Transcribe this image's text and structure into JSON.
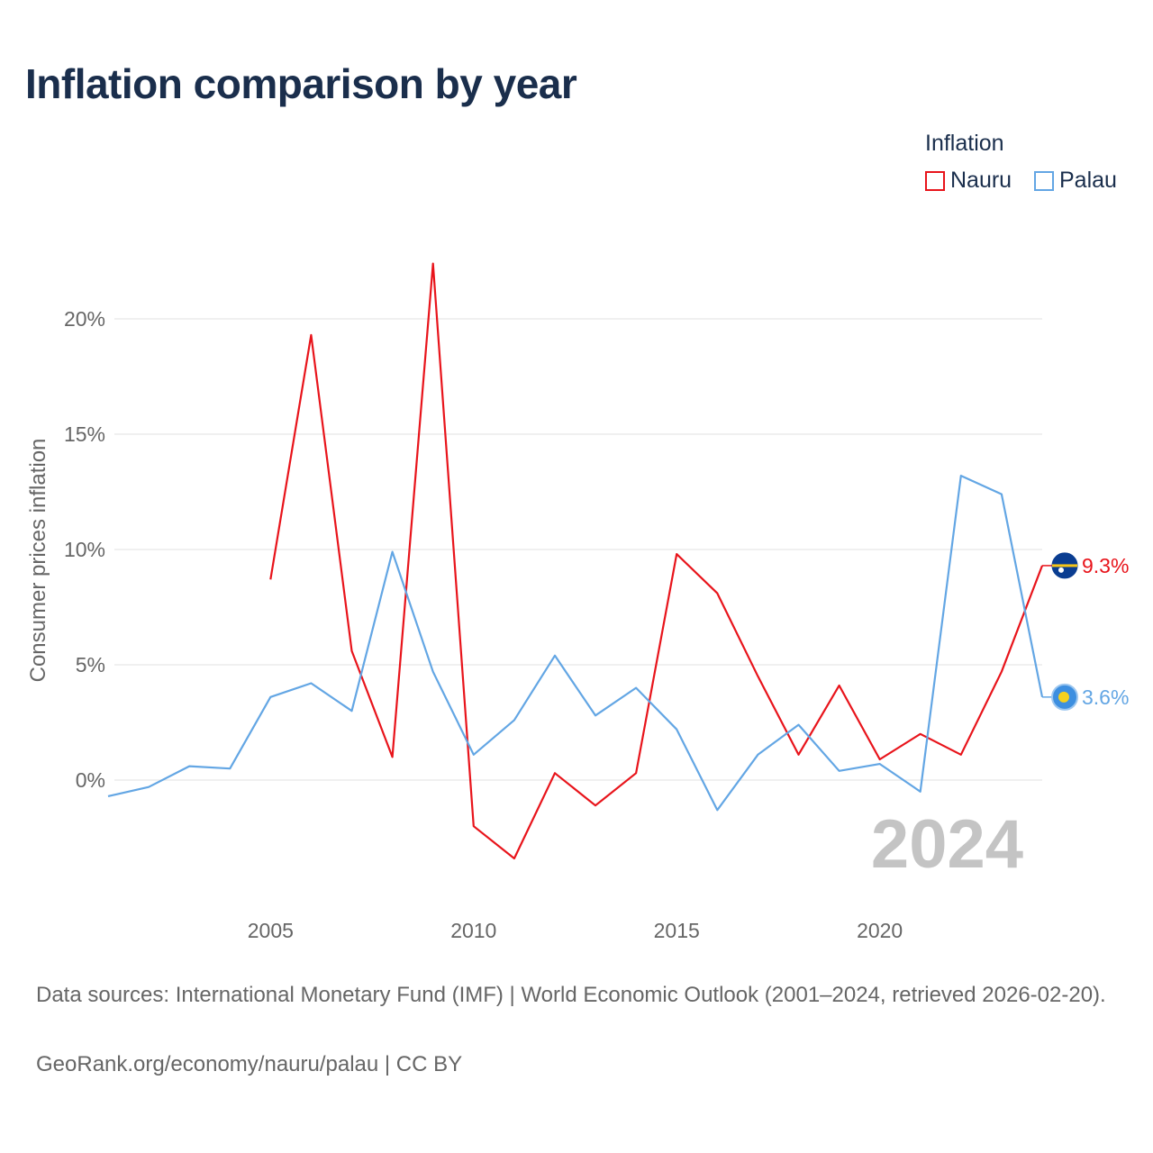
{
  "title": "Inflation comparison by year",
  "legend": {
    "title": "Inflation",
    "items": [
      {
        "name": "Nauru",
        "color": "#e8141b"
      },
      {
        "name": "Palau",
        "color": "#63a6e4"
      }
    ]
  },
  "footer": {
    "sources": "Data sources: International Monetary Fund (IMF) | World Economic Outlook (2001–2024, retrieved 2026-02-20).",
    "credit": "GeoRank.org/economy/nauru/palau | CC BY"
  },
  "chart_data": {
    "type": "line",
    "title": "Inflation comparison by year",
    "xlabel": "",
    "ylabel": "Consumer prices inflation",
    "xlim": [
      2001,
      2024
    ],
    "ylim": [
      -5,
      24
    ],
    "x_ticks": [
      2005,
      2010,
      2015,
      2020
    ],
    "x_tick_labels": [
      "2005",
      "2010",
      "2015",
      "2020"
    ],
    "y_ticks": [
      0,
      5,
      10,
      15,
      20
    ],
    "y_tick_labels": [
      "0%",
      "5%",
      "10%",
      "15%",
      "20%"
    ],
    "grid": true,
    "legend_position": "top-right",
    "year_watermark": "2024",
    "series": [
      {
        "name": "Nauru",
        "color": "#e8141b",
        "end_label": "9.3%",
        "x": [
          2005,
          2006,
          2007,
          2008,
          2009,
          2010,
          2011,
          2012,
          2013,
          2014,
          2015,
          2016,
          2017,
          2018,
          2019,
          2020,
          2021,
          2022,
          2023,
          2024
        ],
        "values": [
          8.7,
          19.3,
          5.6,
          1.0,
          22.4,
          -2.0,
          -3.4,
          0.3,
          -1.1,
          0.3,
          9.8,
          8.1,
          4.5,
          1.1,
          4.1,
          0.9,
          2.0,
          1.1,
          4.7,
          9.3
        ]
      },
      {
        "name": "Palau",
        "color": "#63a6e4",
        "end_label": "3.6%",
        "x": [
          2001,
          2002,
          2003,
          2004,
          2005,
          2006,
          2007,
          2008,
          2009,
          2010,
          2011,
          2012,
          2013,
          2014,
          2015,
          2016,
          2017,
          2018,
          2019,
          2020,
          2021,
          2022,
          2023,
          2024
        ],
        "values": [
          -0.7,
          -0.3,
          0.6,
          0.5,
          3.6,
          4.2,
          3.0,
          9.9,
          4.7,
          1.1,
          2.6,
          5.4,
          2.8,
          4.0,
          2.2,
          -1.3,
          1.1,
          2.4,
          0.4,
          0.7,
          -0.5,
          13.2,
          12.4,
          3.6
        ]
      }
    ]
  }
}
